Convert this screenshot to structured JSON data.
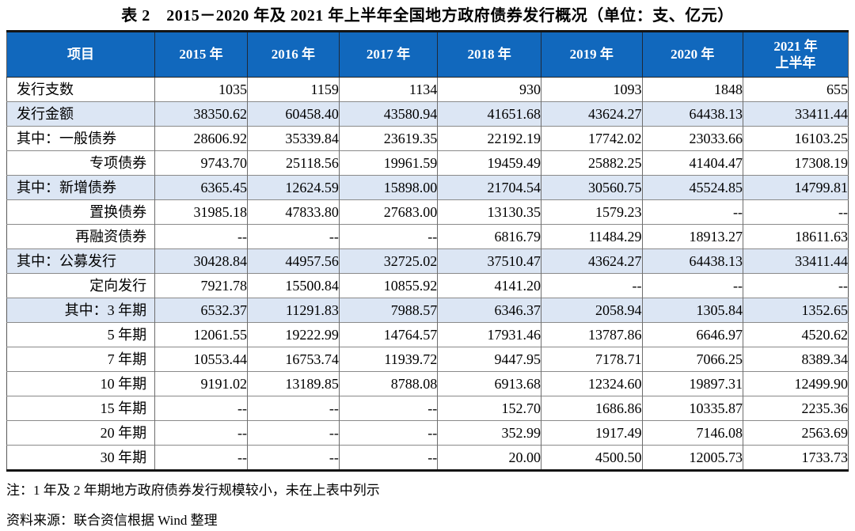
{
  "page": {
    "title": "表 2　2015－2020 年及 2021 年上半年全国地方政府债券发行概况（单位：支、亿元）"
  },
  "colors": {
    "header_bg": "#1168BD",
    "header_text": "#FFFFFF",
    "highlight_row_bg": "#DCE6F4",
    "thick_border": "#141414"
  },
  "table": {
    "columns": [
      "项目",
      "2015 年",
      "2016 年",
      "2017 年",
      "2018 年",
      "2019 年",
      "2020 年",
      "2021 年\n上半年"
    ],
    "rows": [
      {
        "label": "发行支数",
        "align": "left",
        "highlight": false,
        "values": [
          "1035",
          "1159",
          "1134",
          "930",
          "1093",
          "1848",
          "655"
        ]
      },
      {
        "label": "发行金额",
        "align": "left",
        "highlight": true,
        "values": [
          "38350.62",
          "60458.40",
          "43580.94",
          "41651.68",
          "43624.27",
          "64438.13",
          "33411.44"
        ]
      },
      {
        "label": "其中：一般债券",
        "align": "left",
        "highlight": false,
        "values": [
          "28606.92",
          "35339.84",
          "23619.35",
          "22192.19",
          "17742.02",
          "23033.66",
          "16103.25"
        ]
      },
      {
        "label": "专项债券",
        "align": "right",
        "highlight": false,
        "values": [
          "9743.70",
          "25118.56",
          "19961.59",
          "19459.49",
          "25882.25",
          "41404.47",
          "17308.19"
        ]
      },
      {
        "label": "其中：新增债券",
        "align": "left",
        "highlight": true,
        "values": [
          "6365.45",
          "12624.59",
          "15898.00",
          "21704.54",
          "30560.75",
          "45524.85",
          "14799.81"
        ]
      },
      {
        "label": "置换债券",
        "align": "right",
        "highlight": false,
        "values": [
          "31985.18",
          "47833.80",
          "27683.00",
          "13130.35",
          "1579.23",
          "--",
          "--"
        ]
      },
      {
        "label": "再融资债券",
        "align": "right",
        "highlight": false,
        "values": [
          "--",
          "--",
          "--",
          "6816.79",
          "11484.29",
          "18913.27",
          "18611.63"
        ]
      },
      {
        "label": "其中：公募发行",
        "align": "left",
        "highlight": true,
        "values": [
          "30428.84",
          "44957.56",
          "32725.02",
          "37510.47",
          "43624.27",
          "64438.13",
          "33411.44"
        ]
      },
      {
        "label": "定向发行",
        "align": "right",
        "highlight": false,
        "values": [
          "7921.78",
          "15500.84",
          "10855.92",
          "4141.20",
          "--",
          "--",
          "--"
        ]
      },
      {
        "label": "其中：3 年期",
        "align": "right",
        "highlight": true,
        "values": [
          "6532.37",
          "11291.83",
          "7988.57",
          "6346.37",
          "2058.94",
          "1305.84",
          "1352.65"
        ]
      },
      {
        "label": "5 年期",
        "align": "right",
        "highlight": false,
        "values": [
          "12061.55",
          "19222.99",
          "14764.57",
          "17931.46",
          "13787.86",
          "6646.97",
          "4520.62"
        ]
      },
      {
        "label": "7 年期",
        "align": "right",
        "highlight": false,
        "values": [
          "10553.44",
          "16753.74",
          "11939.72",
          "9447.95",
          "7178.71",
          "7066.25",
          "8389.34"
        ]
      },
      {
        "label": "10 年期",
        "align": "right",
        "highlight": false,
        "values": [
          "9191.02",
          "13189.85",
          "8788.08",
          "6913.68",
          "12324.60",
          "19897.31",
          "12499.90"
        ]
      },
      {
        "label": "15 年期",
        "align": "right",
        "highlight": false,
        "values": [
          "--",
          "--",
          "--",
          "152.70",
          "1686.86",
          "10335.87",
          "2235.36"
        ]
      },
      {
        "label": "20 年期",
        "align": "right",
        "highlight": false,
        "values": [
          "--",
          "--",
          "--",
          "352.99",
          "1917.49",
          "7146.08",
          "2563.69"
        ]
      },
      {
        "label": "30 年期",
        "align": "right",
        "highlight": false,
        "values": [
          "--",
          "--",
          "--",
          "20.00",
          "4500.50",
          "12005.73",
          "1733.73"
        ]
      }
    ]
  },
  "notes": {
    "note": "注：1 年及 2 年期地方政府债券发行规模较小，未在上表中列示",
    "source": "资料来源：联合资信根据 Wind 整理"
  }
}
